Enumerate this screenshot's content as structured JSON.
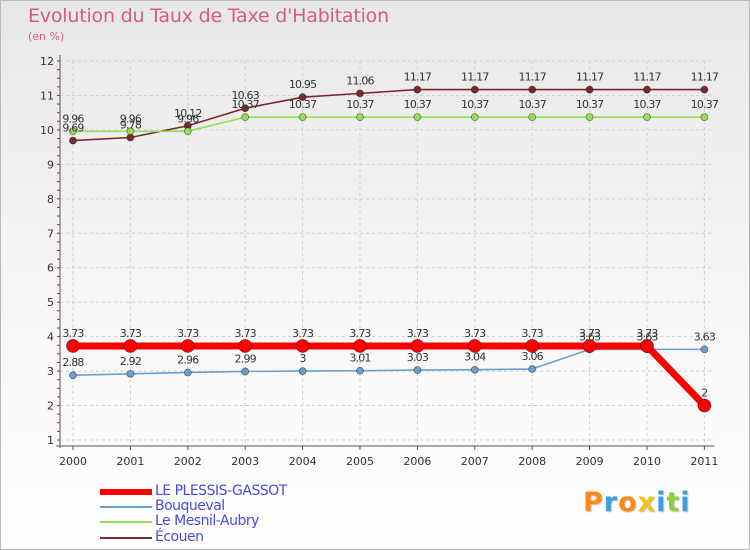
{
  "chart_data": {
    "type": "line",
    "title": "Evolution du Taux de Taxe d'Habitation",
    "subtitle": "(en %)",
    "xlabel": "",
    "ylabel": "",
    "x": [
      "2000",
      "2001",
      "2002",
      "2003",
      "2004",
      "2005",
      "2006",
      "2007",
      "2008",
      "2009",
      "2010",
      "2011"
    ],
    "ylim": [
      1,
      12
    ],
    "yticks": [
      "1",
      "2",
      "3",
      "4",
      "5",
      "6",
      "7",
      "8",
      "9",
      "10",
      "11",
      "12"
    ],
    "grid": true,
    "legend_position": "bottom-left",
    "series": [
      {
        "name": "LE PLESSIS-GASSOT",
        "color": "#ff0000",
        "values": [
          3.73,
          3.73,
          3.73,
          3.73,
          3.73,
          3.73,
          3.73,
          3.73,
          3.73,
          3.73,
          3.73,
          2
        ],
        "labels": [
          "3.73",
          "3.73",
          "3.73",
          "3.73",
          "3.73",
          "3.73",
          "3.73",
          "3.73",
          "3.73",
          "3.73",
          "3.73",
          "2"
        ]
      },
      {
        "name": "Bouqueval",
        "color": "#6a9fcf",
        "values": [
          2.88,
          2.92,
          2.96,
          2.99,
          3,
          3.01,
          3.03,
          3.04,
          3.06,
          3.63,
          3.63,
          3.63
        ],
        "labels": [
          "2.88",
          "2.92",
          "2.96",
          "2.99",
          "3",
          "3.01",
          "3.03",
          "3.04",
          "3.06",
          "3.63",
          "3.63",
          "3.63"
        ]
      },
      {
        "name": "Le Mesnil-Aubry",
        "color": "#99dd55",
        "values": [
          9.96,
          9.96,
          9.96,
          10.37,
          10.37,
          10.37,
          10.37,
          10.37,
          10.37,
          10.37,
          10.37,
          10.37
        ],
        "labels": [
          "9.96",
          "9.96",
          "9.96",
          "10.37",
          "10.37",
          "10.37",
          "10.37",
          "10.37",
          "10.37",
          "10.37",
          "10.37",
          "10.37"
        ]
      },
      {
        "name": "Écouen",
        "color": "#7a2a2a",
        "values": [
          9.69,
          9.78,
          10.12,
          10.63,
          10.95,
          11.06,
          11.17,
          11.17,
          11.17,
          11.17,
          11.17,
          11.17
        ],
        "labels": [
          "9.69",
          "9.78",
          "10.12",
          "10.63",
          "10.95",
          "11.06",
          "11.17",
          "11.17",
          "11.17",
          "11.17",
          "11.17",
          "11.17"
        ]
      }
    ]
  },
  "logo": {
    "text": "Proxiti",
    "colors": [
      "#ff8a1c",
      "#3d9ee0",
      "#ff8a1c",
      "#f2c21b",
      "#3d9ee0",
      "#8ccf3c",
      "#3d9ee0"
    ]
  }
}
